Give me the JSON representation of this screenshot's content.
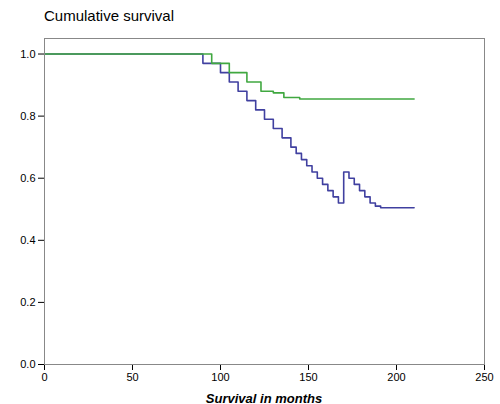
{
  "chart_data": {
    "type": "step",
    "title": "Cumulative survival",
    "xlabel": "Survival in months",
    "xlim": [
      0,
      250
    ],
    "ylim": [
      0,
      1.05
    ],
    "xticks": [
      0,
      50,
      100,
      150,
      200,
      250
    ],
    "yticks": [
      {
        "value": 0,
        "label": "0.0"
      },
      0.2,
      0.4,
      0.6,
      0.8,
      {
        "value": 1.0,
        "label": "1.0"
      }
    ],
    "grid": false,
    "series": [
      {
        "color": "#4040a0",
        "x": [
          0,
          15,
          80,
          90,
          100,
          105,
          110,
          115,
          120,
          125,
          130,
          135,
          140,
          143,
          146,
          149,
          152,
          155,
          158,
          161,
          164,
          167,
          170,
          173,
          176,
          179,
          182,
          185,
          188,
          191,
          194,
          210
        ],
        "values": [
          1.0,
          1.0,
          1.0,
          0.97,
          0.94,
          0.91,
          0.88,
          0.85,
          0.82,
          0.79,
          0.76,
          0.73,
          0.7,
          0.68,
          0.66,
          0.64,
          0.62,
          0.6,
          0.58,
          0.56,
          0.54,
          0.52,
          0.62,
          0.6,
          0.58,
          0.56,
          0.54,
          0.52,
          0.51,
          0.505,
          0.505,
          0.505
        ]
      },
      {
        "color": "#40a840",
        "x": [
          0,
          15,
          85,
          95,
          105,
          115,
          123,
          130,
          136,
          145,
          160,
          210
        ],
        "values": [
          1.0,
          1.0,
          1.0,
          0.97,
          0.94,
          0.91,
          0.88,
          0.875,
          0.86,
          0.855,
          0.855,
          0.855
        ]
      }
    ]
  }
}
